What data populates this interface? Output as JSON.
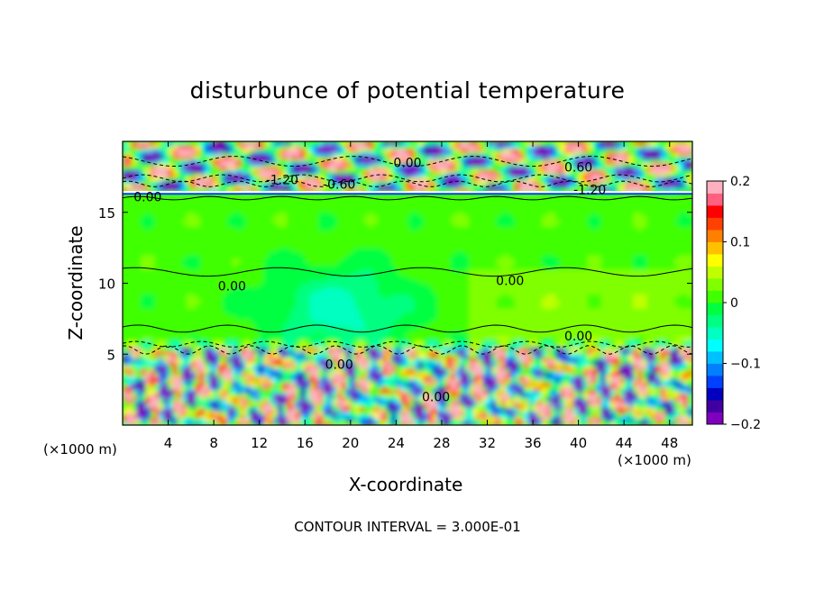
{
  "chart_data": {
    "type": "heatmap",
    "title": "disturbunce of potential temperature",
    "xlabel": "X-coordinate",
    "ylabel": "Z-coordinate",
    "x_unit_left": "(×1000 m)",
    "x_unit_right": "(×1000 m)",
    "x_ticks": [
      "4",
      "8",
      "12",
      "16",
      "20",
      "24",
      "28",
      "32",
      "36",
      "40",
      "44",
      "48"
    ],
    "x_tick_values": [
      4,
      8,
      12,
      16,
      20,
      24,
      28,
      32,
      36,
      40,
      44,
      48
    ],
    "y_ticks": [
      "5",
      "10",
      "15"
    ],
    "y_tick_values": [
      5,
      10,
      15
    ],
    "xlim": [
      0,
      50
    ],
    "ylim": [
      0,
      20
    ],
    "colorbar": {
      "ticks": [
        "0.2",
        "0.1",
        "0",
        "−0.1",
        "−0.2"
      ],
      "tick_values": [
        0.2,
        0.1,
        0,
        -0.1,
        -0.2
      ],
      "range": [
        -0.2,
        0.2
      ],
      "colors": [
        "#8000c0",
        "#4000a0",
        "#0000c0",
        "#0040ff",
        "#0080ff",
        "#00c0ff",
        "#00ffff",
        "#00ffc0",
        "#00ff80",
        "#00ff40",
        "#40ff00",
        "#80ff00",
        "#c0ff00",
        "#ffff00",
        "#ffc000",
        "#ff8000",
        "#ff4000",
        "#ff0000",
        "#ff6080",
        "#ffb0c0"
      ]
    },
    "contour_labels": [
      {
        "text": "0.00",
        "x": 2.2,
        "z": 16.1
      },
      {
        "text": "0.00",
        "x": 9.6,
        "z": 9.8
      },
      {
        "text": "0.00",
        "x": 34.0,
        "z": 10.2
      },
      {
        "text": "0.00",
        "x": 40.0,
        "z": 6.3
      },
      {
        "text": "0.00",
        "x": 19.0,
        "z": 4.3
      },
      {
        "text": "0.00",
        "x": 27.5,
        "z": 2.0
      },
      {
        "text": "0.00",
        "x": 25.0,
        "z": 18.5
      },
      {
        "text": "-1.20",
        "x": 14.0,
        "z": 17.3
      },
      {
        "text": "-0.60",
        "x": 19.0,
        "z": 17.0
      },
      {
        "text": "0.60",
        "x": 40.0,
        "z": 18.2
      },
      {
        "text": "-1.20",
        "x": 41.0,
        "z": 16.6
      }
    ],
    "contour_interval_text": "CONTOUR INTERVAL = 3.000E-01",
    "regions": {
      "stratosphere_band_z": [
        16.5,
        20
      ],
      "tropopause_z": 16.3,
      "boundary_top_z": 6.0
    }
  }
}
